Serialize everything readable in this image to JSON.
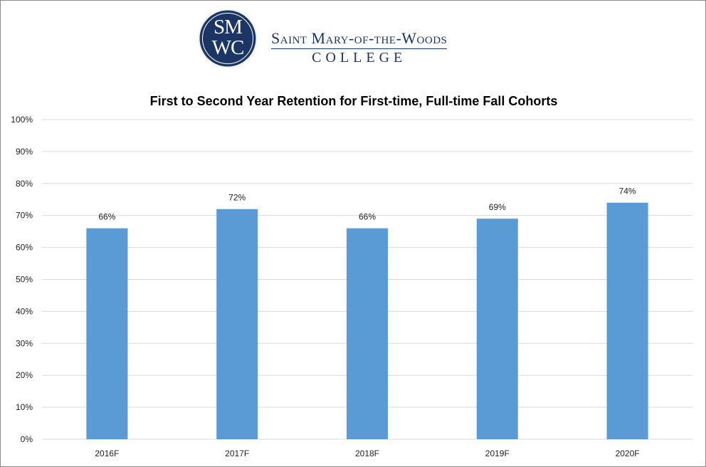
{
  "logo": {
    "seal_line1": "SM",
    "seal_line2": "WC",
    "name": "Saint Mary-of-the-Woods",
    "college": "COLLEGE",
    "color": "#1b3564"
  },
  "chart_data": {
    "type": "bar",
    "title": "First to Second Year Retention for First-time, Full-time Fall Cohorts",
    "xlabel": "",
    "ylabel": "",
    "categories": [
      "2016F",
      "2017F",
      "2018F",
      "2019F",
      "2020F"
    ],
    "values": [
      66,
      72,
      66,
      69,
      74
    ],
    "data_labels": [
      "66%",
      "72%",
      "66%",
      "69%",
      "74%"
    ],
    "ylim": [
      0,
      100
    ],
    "yticks": [
      0,
      10,
      20,
      30,
      40,
      50,
      60,
      70,
      80,
      90,
      100
    ],
    "ytick_labels": [
      "0%",
      "10%",
      "20%",
      "30%",
      "40%",
      "50%",
      "60%",
      "70%",
      "80%",
      "90%",
      "100%"
    ],
    "grid": true,
    "legend": "none",
    "bar_color": "#5b9bd5",
    "grid_color": "#d9d9d9"
  }
}
